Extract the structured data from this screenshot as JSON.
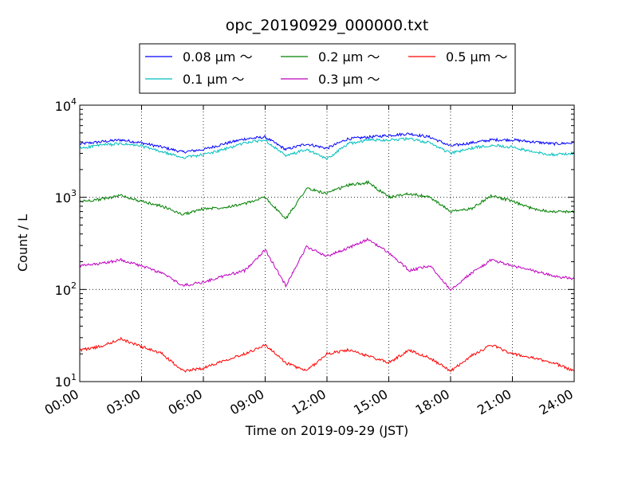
{
  "chart_data": {
    "type": "line",
    "title": "opc_20190929_000000.txt",
    "xlabel": "Time on 2019-09-29 (JST)",
    "ylabel": "Count / L",
    "yscale": "log",
    "ylim": [
      10,
      10000
    ],
    "xlim": [
      "00:00",
      "24:00"
    ],
    "x_tick_labels": [
      "00:00",
      "03:00",
      "06:00",
      "09:00",
      "12:00",
      "15:00",
      "18:00",
      "21:00",
      "24:00"
    ],
    "y_tick_labels": [
      {
        "base": "10",
        "exp": "1"
      },
      {
        "base": "10",
        "exp": "2"
      },
      {
        "base": "10",
        "exp": "3"
      },
      {
        "base": "10",
        "exp": "4"
      }
    ],
    "grid": true,
    "legend_position": "top-center",
    "x": [
      "00:00",
      "01:00",
      "02:00",
      "03:00",
      "04:00",
      "05:00",
      "06:00",
      "07:00",
      "08:00",
      "09:00",
      "10:00",
      "11:00",
      "12:00",
      "13:00",
      "14:00",
      "15:00",
      "16:00",
      "17:00",
      "18:00",
      "19:00",
      "20:00",
      "21:00",
      "22:00",
      "23:00",
      "24:00"
    ],
    "series": [
      {
        "name": "0.08 μm ～",
        "color": "#0000ff",
        "values": [
          3800,
          4000,
          4200,
          3900,
          3500,
          3100,
          3300,
          3800,
          4300,
          4500,
          3300,
          3800,
          3400,
          4300,
          4500,
          4700,
          4900,
          4500,
          3600,
          3900,
          4200,
          4200,
          4000,
          3800,
          3900
        ]
      },
      {
        "name": "0.1 μm ～",
        "color": "#00bfbf",
        "values": [
          3400,
          3700,
          3800,
          3600,
          3100,
          2700,
          2900,
          3300,
          3900,
          4200,
          2800,
          3300,
          2600,
          3800,
          4200,
          4200,
          4300,
          3900,
          3000,
          3400,
          3700,
          3500,
          3100,
          2900,
          3000
        ]
      },
      {
        "name": "0.2 μm ～",
        "color": "#008000",
        "values": [
          900,
          950,
          1050,
          900,
          800,
          650,
          750,
          780,
          850,
          1000,
          580,
          1250,
          1100,
          1350,
          1450,
          1000,
          1100,
          1000,
          700,
          750,
          1050,
          900,
          750,
          700,
          700
        ]
      },
      {
        "name": "0.3 μm ～",
        "color": "#bf00bf",
        "values": [
          180,
          190,
          210,
          180,
          150,
          110,
          120,
          140,
          160,
          270,
          110,
          290,
          230,
          280,
          350,
          250,
          160,
          180,
          100,
          150,
          210,
          180,
          160,
          140,
          130
        ]
      },
      {
        "name": "0.5 μm ～",
        "color": "#ff0000",
        "values": [
          22,
          24,
          29,
          24,
          20,
          13,
          14,
          17,
          20,
          25,
          16,
          13,
          20,
          22,
          19,
          16,
          22,
          18,
          13,
          19,
          25,
          20,
          18,
          16,
          13
        ]
      }
    ]
  }
}
